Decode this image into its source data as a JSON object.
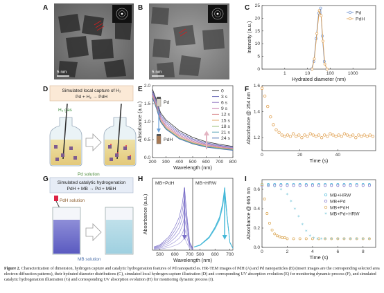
{
  "panels": {
    "A": "A",
    "B": "B",
    "C": "C",
    "D": "D",
    "E": "E",
    "F": "F",
    "G": "G",
    "H": "H",
    "I": "I"
  },
  "scalebar_A": "5 nm",
  "scalebar_B": "5 nm",
  "panel_D": {
    "title": "Simulated local capture of H₂",
    "equation": "Pd + H₂ → PdH",
    "gas_label": "H₂ gas",
    "solution_label": "Pd solution"
  },
  "panel_G": {
    "title": "Simulated catalytic hydrogenation",
    "equation": "PdH + MB → Pd + MBH",
    "reagent_label": "PdH solution",
    "solution_label": "MB solution"
  },
  "panel_H": {
    "left_label": "MB+PdH",
    "right_label": "MB+HRW"
  },
  "panel_E": {
    "pd_label": "Pd",
    "pdh_label": "PdH"
  },
  "caption": {
    "title": "Figure 2.",
    "text": "Characterization of dimension, hydrogen capture and catalytic hydrogenation features of Pd nanoparticles. HR-TEM images of PdH (A) and Pd nanoparticles (B) (insert images are the corresponding selected area electron diffraction patterns), their hydrated diameter distributions (C), simulated local hydrogen capture illustration (D) and corresponding UV absorption evolution (E) for monitoring dynamic process (F), and simulated catalytic hydrogenation illustration (G) and corresponding UV absorption evolution (H) for monitoring dynamic process (I)."
  },
  "colors": {
    "pd": "#6a8fd0",
    "pdh": "#e0a050",
    "hrw": "#45b8d8",
    "mb": "#7a6fc8",
    "pdh_i": "#d9a24a"
  },
  "chart_data": [
    {
      "panel": "C",
      "type": "line",
      "title": "",
      "xlabel": "Hydrated diameter (nm)",
      "ylabel": "Intensity (a.u.)",
      "xscale": "log",
      "xlim": [
        0.1,
        10000
      ],
      "ylim": [
        0,
        25
      ],
      "xticks": [
        "1",
        "10",
        "100",
        "1000"
      ],
      "yticks": [
        "0",
        "5",
        "10",
        "15",
        "20",
        "25"
      ],
      "series": [
        {
          "name": "Pd",
          "x": [
            15,
            19,
            24,
            31,
            38,
            45,
            55,
            70
          ],
          "y": [
            0,
            3,
            12,
            22,
            24,
            13,
            3,
            0
          ]
        },
        {
          "name": "PdH",
          "x": [
            16,
            20,
            26,
            33,
            40,
            48,
            58,
            72
          ],
          "y": [
            0,
            4,
            14,
            23,
            21,
            11,
            2,
            0
          ]
        }
      ]
    },
    {
      "panel": "E",
      "type": "line",
      "title": "",
      "xlabel": "Wavelength (nm)",
      "ylabel": "Absorbance (a.u.)",
      "xlim": [
        200,
        800
      ],
      "ylim": [
        0,
        2
      ],
      "xticks": [
        "200",
        "300",
        "400",
        "500",
        "600",
        "700",
        "800"
      ],
      "yticks": [
        "0.0",
        "0.5",
        "1.0",
        "1.5",
        "2.0"
      ],
      "series": [
        {
          "name": "0",
          "x": [
            200,
            230,
            260,
            300,
            400,
            500,
            600,
            700,
            800
          ],
          "y": [
            1.9,
            1.6,
            1.25,
            1.05,
            0.75,
            0.56,
            0.44,
            0.37,
            0.31
          ]
        },
        {
          "name": "3 s",
          "x": [
            200,
            230,
            260,
            300,
            400,
            500,
            600,
            700,
            800
          ],
          "y": [
            1.85,
            1.55,
            1.2,
            1.0,
            0.7,
            0.52,
            0.41,
            0.34,
            0.29
          ]
        },
        {
          "name": "6 s",
          "x": [
            200,
            230,
            260,
            300,
            400,
            500,
            600,
            700,
            800
          ],
          "y": [
            1.8,
            1.5,
            1.15,
            0.95,
            0.66,
            0.49,
            0.38,
            0.32,
            0.27
          ]
        },
        {
          "name": "9 s",
          "x": [
            200,
            230,
            260,
            300,
            400,
            500,
            600,
            700,
            800
          ],
          "y": [
            1.75,
            1.45,
            1.1,
            0.9,
            0.62,
            0.46,
            0.36,
            0.3,
            0.25
          ]
        },
        {
          "name": "12 s",
          "x": [
            200,
            230,
            260,
            300,
            400,
            500,
            600,
            700,
            800
          ],
          "y": [
            1.72,
            1.42,
            1.06,
            0.86,
            0.59,
            0.43,
            0.34,
            0.28,
            0.24
          ]
        },
        {
          "name": "15 s",
          "x": [
            200,
            230,
            260,
            300,
            400,
            500,
            600,
            700,
            800
          ],
          "y": [
            1.7,
            1.4,
            1.03,
            0.83,
            0.56,
            0.41,
            0.32,
            0.27,
            0.23
          ]
        },
        {
          "name": "18 s",
          "x": [
            200,
            230,
            260,
            300,
            400,
            500,
            600,
            700,
            800
          ],
          "y": [
            1.68,
            1.38,
            1.01,
            0.81,
            0.54,
            0.4,
            0.31,
            0.26,
            0.22
          ]
        },
        {
          "name": "21 s",
          "x": [
            200,
            230,
            260,
            300,
            400,
            500,
            600,
            700,
            800
          ],
          "y": [
            1.67,
            1.37,
            1.0,
            0.8,
            0.53,
            0.39,
            0.3,
            0.25,
            0.21
          ]
        },
        {
          "name": "24 s",
          "x": [
            200,
            230,
            260,
            300,
            400,
            500,
            600,
            700,
            800
          ],
          "y": [
            1.66,
            1.36,
            0.99,
            0.79,
            0.52,
            0.38,
            0.29,
            0.24,
            0.2
          ]
        }
      ],
      "series_colors": [
        "#2c2c2c",
        "#5c5cb0",
        "#8e73c0",
        "#c06ea5",
        "#d8878a",
        "#e0a86a",
        "#8fb86a",
        "#5ea6b8",
        "#4a6eb0"
      ]
    },
    {
      "panel": "F",
      "type": "scatter",
      "title": "",
      "xlabel": "Time (s)",
      "ylabel": "Absorbance @ 254 nm",
      "xlim": [
        0,
        60
      ],
      "ylim": [
        1.1,
        1.6
      ],
      "xticks": [
        "0",
        "20",
        "40"
      ],
      "yticks": [
        "1.2",
        "1.4",
        "1.6"
      ],
      "series": [
        {
          "name": "",
          "x": [
            0,
            1.5,
            3,
            4.5,
            6,
            7.5,
            9,
            10.5,
            12,
            13.5,
            15,
            16.5,
            18,
            19.5,
            21,
            22.5,
            24,
            25.5,
            27,
            28.5,
            30,
            31.5,
            33,
            34.5,
            36,
            37.5,
            39,
            40.5,
            42,
            43.5,
            45,
            46.5,
            48,
            49.5,
            51,
            52.5,
            54,
            55.5,
            57,
            58.5
          ],
          "y": [
            1.58,
            1.52,
            1.44,
            1.36,
            1.3,
            1.26,
            1.24,
            1.22,
            1.21,
            1.22,
            1.21,
            1.23,
            1.21,
            1.22,
            1.2,
            1.22,
            1.21,
            1.23,
            1.22,
            1.21,
            1.22,
            1.2,
            1.22,
            1.21,
            1.23,
            1.22,
            1.21,
            1.22,
            1.21,
            1.23,
            1.22,
            1.21,
            1.22,
            1.2,
            1.22,
            1.21,
            1.22,
            1.21,
            1.22,
            1.21
          ]
        }
      ]
    },
    {
      "panel": "H",
      "type": "line",
      "title": "",
      "xlabel": "Wavelength (nm)",
      "ylabel": "Absorbance (a.u.)",
      "subplots": [
        {
          "label": "MB+PdH",
          "xlim": [
            450,
            720
          ],
          "xticks": [
            "500",
            "600",
            "700"
          ],
          "series": [
            {
              "name": "MB+PdH",
              "x": [
                460,
                500,
                560,
                600,
                630,
                650,
                665,
                680,
                700,
                720
              ],
              "y": [
                0.05,
                0.08,
                0.2,
                0.35,
                0.5,
                0.7,
                0.95,
                0.55,
                0.12,
                0.03
              ]
            }
          ]
        },
        {
          "label": "MB+HRW",
          "xlim": [
            450,
            720
          ],
          "xticks": [
            "500",
            "600",
            "700"
          ],
          "series": [
            {
              "name": "MB+HRW",
              "x": [
                460,
                500,
                560,
                600,
                630,
                650,
                665,
                680,
                700,
                720
              ],
              "y": [
                0.05,
                0.08,
                0.2,
                0.35,
                0.5,
                0.7,
                0.95,
                0.55,
                0.12,
                0.03
              ]
            }
          ]
        }
      ]
    },
    {
      "panel": "I",
      "type": "scatter",
      "title": "",
      "xlabel": "Time (s)",
      "ylabel": "Absorbance @ 665 nm",
      "xlim": [
        0,
        9
      ],
      "ylim": [
        0,
        0.7
      ],
      "xticks": [
        "0",
        "2",
        "4",
        "6",
        "8"
      ],
      "yticks": [
        "0.0",
        "0.2",
        "0.4",
        "0.6"
      ],
      "series": [
        {
          "name": "MB+HRW",
          "x": [
            0,
            0.5,
            1,
            1.5,
            2,
            2.5,
            3,
            3.5,
            4,
            4.5,
            5,
            5.5,
            6,
            6.5,
            7,
            7.5,
            8,
            8.5
          ],
          "y": [
            0.65,
            0.65,
            0.65,
            0.65,
            0.65,
            0.65,
            0.65,
            0.65,
            0.65,
            0.65,
            0.65,
            0.65,
            0.65,
            0.65,
            0.65,
            0.65,
            0.65,
            0.65
          ]
        },
        {
          "name": "MB+Pd",
          "x": [
            0,
            0.5,
            1,
            1.5,
            2,
            2.5,
            3,
            3.5,
            4,
            4.5,
            5,
            5.5,
            6,
            6.5,
            7,
            7.5,
            8,
            8.5
          ],
          "y": [
            0.64,
            0.64,
            0.64,
            0.64,
            0.64,
            0.64,
            0.64,
            0.64,
            0.64,
            0.64,
            0.64,
            0.64,
            0.64,
            0.64,
            0.64,
            0.64,
            0.64,
            0.64
          ]
        },
        {
          "name": "MB+PdH",
          "x": [
            0,
            0.2,
            0.4,
            0.6,
            0.8,
            1,
            1.2,
            1.4,
            1.6,
            1.8,
            2,
            2.5,
            3,
            3.5,
            4,
            4.5,
            5,
            5.5,
            6,
            6.5,
            7,
            7.5,
            8,
            8.5
          ],
          "y": [
            0.65,
            0.5,
            0.35,
            0.25,
            0.18,
            0.14,
            0.12,
            0.11,
            0.1,
            0.1,
            0.09,
            0.09,
            0.09,
            0.09,
            0.09,
            0.09,
            0.09,
            0.09,
            0.09,
            0.09,
            0.09,
            0.09,
            0.09,
            0.09
          ]
        },
        {
          "name": "MB+Pd+HRW",
          "x": [
            0,
            0.5,
            1,
            1.5,
            2,
            2.3,
            2.6,
            2.9,
            3.2,
            3.5,
            3.8,
            4.1,
            4.4,
            4.7,
            5,
            5.5,
            6,
            6.5,
            7,
            7.5,
            8,
            8.5
          ],
          "y": [
            0.65,
            0.64,
            0.63,
            0.6,
            0.55,
            0.48,
            0.4,
            0.32,
            0.24,
            0.17,
            0.12,
            0.1,
            0.09,
            0.09,
            0.09,
            0.09,
            0.09,
            0.09,
            0.09,
            0.09,
            0.09,
            0.09
          ]
        }
      ]
    }
  ]
}
